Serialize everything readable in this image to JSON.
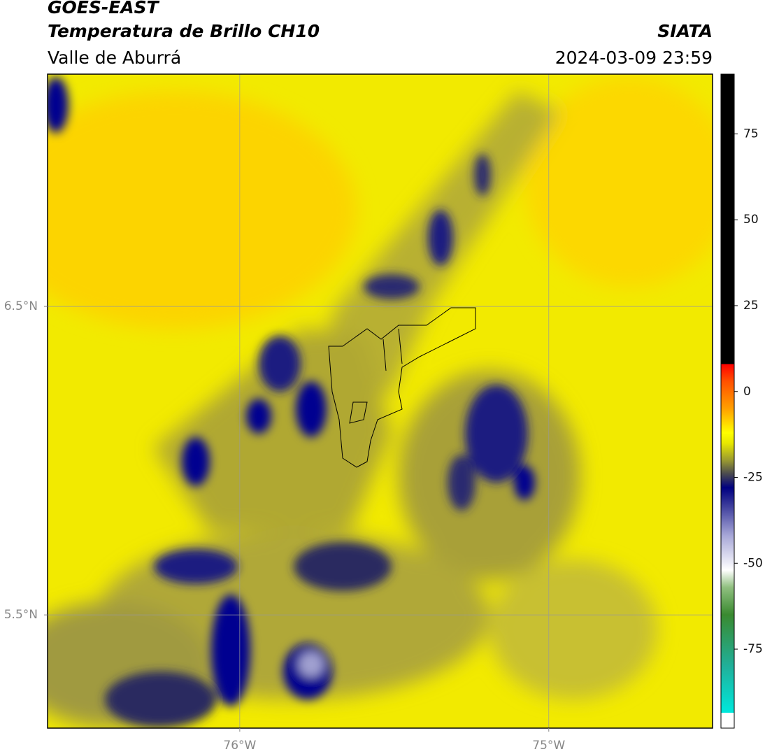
{
  "map": {
    "satellite": "GOES-EAST",
    "title": "Temperatura de Brillo CH10",
    "source": "SIATA",
    "region": "Valle de Aburrá",
    "datetime": "2024-03-09 23:59",
    "lonlim": [
      -76.622,
      -74.47
    ],
    "latlim": [
      5.133,
      7.253
    ],
    "lon_ticks": [
      {
        "value": -76,
        "label": "76°W"
      },
      {
        "value": -75,
        "label": "75°W"
      }
    ],
    "lat_ticks": [
      {
        "value": 6.5,
        "label": "6.5°N"
      },
      {
        "value": 5.5,
        "label": "5.5°N"
      }
    ],
    "grid": true,
    "colorbar": {
      "lim": [
        -98,
        92.4
      ],
      "ticks": [
        75,
        50,
        25,
        0,
        -25,
        -50,
        -75
      ],
      "stops": [
        {
          "value": -98,
          "color": "#ffffff"
        },
        {
          "value": -93.5,
          "color": "#ffffff"
        },
        {
          "value": -93.5,
          "color": "#00e8dc"
        },
        {
          "value": -80,
          "color": "#20b09a"
        },
        {
          "value": -65,
          "color": "#3a8a30"
        },
        {
          "value": -57,
          "color": "#90c080"
        },
        {
          "value": -52,
          "color": "#ffffff"
        },
        {
          "value": -42,
          "color": "#a8a8d8"
        },
        {
          "value": -33,
          "color": "#3a3a9a"
        },
        {
          "value": -28,
          "color": "#000080"
        },
        {
          "value": -24,
          "color": "#4a4a50"
        },
        {
          "value": -20,
          "color": "#9a9a30"
        },
        {
          "value": -15,
          "color": "#e8e800"
        },
        {
          "value": -12,
          "color": "#ffff00"
        },
        {
          "value": -5,
          "color": "#ffa000"
        },
        {
          "value": 3,
          "color": "#ff5000"
        },
        {
          "value": 8,
          "color": "#ff0000"
        },
        {
          "value": 8,
          "color": "#000000"
        },
        {
          "value": 92.4,
          "color": "#000000"
        }
      ]
    }
  }
}
